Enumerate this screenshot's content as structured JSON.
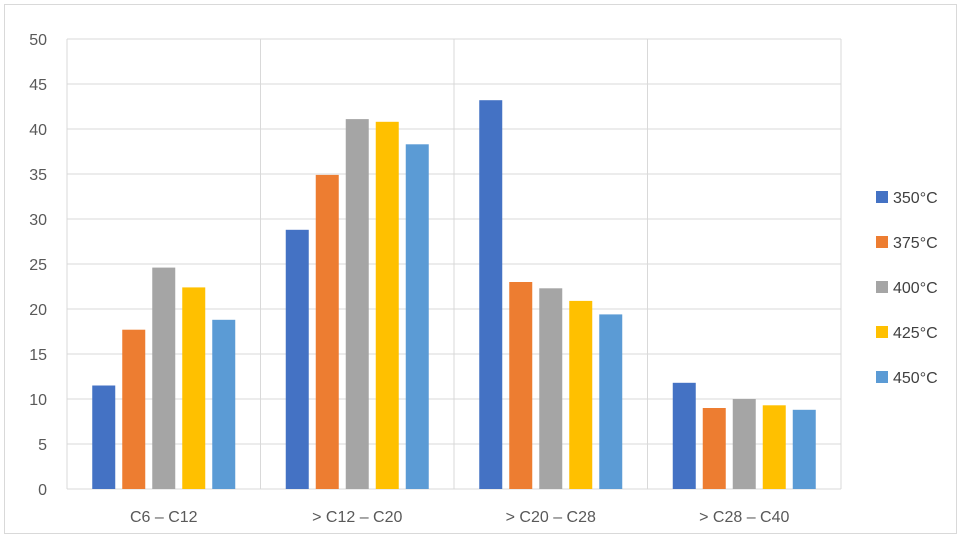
{
  "chart_data": {
    "type": "bar",
    "categories": [
      "C6 – C12",
      "> C12 – C20",
      "> C20 – C28",
      "> C28 – C40"
    ],
    "series": [
      {
        "name": "350°C",
        "color": "#4472C4",
        "values": [
          11.5,
          28.8,
          43.2,
          11.8
        ]
      },
      {
        "name": "375°C",
        "color": "#ED7D31",
        "values": [
          17.7,
          34.9,
          23.0,
          9.0
        ]
      },
      {
        "name": "400°C",
        "color": "#A5A5A5",
        "values": [
          24.6,
          41.1,
          22.3,
          10.0
        ]
      },
      {
        "name": "425°C",
        "color": "#FFC000",
        "values": [
          22.4,
          40.8,
          20.9,
          9.3
        ]
      },
      {
        "name": "450°C",
        "color": "#5B9BD5",
        "values": [
          18.8,
          38.3,
          19.4,
          8.8
        ]
      }
    ],
    "ylim": [
      0,
      50
    ],
    "yticks": [
      "0",
      "5",
      "10",
      "15",
      "20",
      "25",
      "30",
      "35",
      "40",
      "45",
      "50"
    ],
    "grid": true,
    "legend_position": "right",
    "xlabel": "",
    "ylabel": "",
    "title": ""
  }
}
